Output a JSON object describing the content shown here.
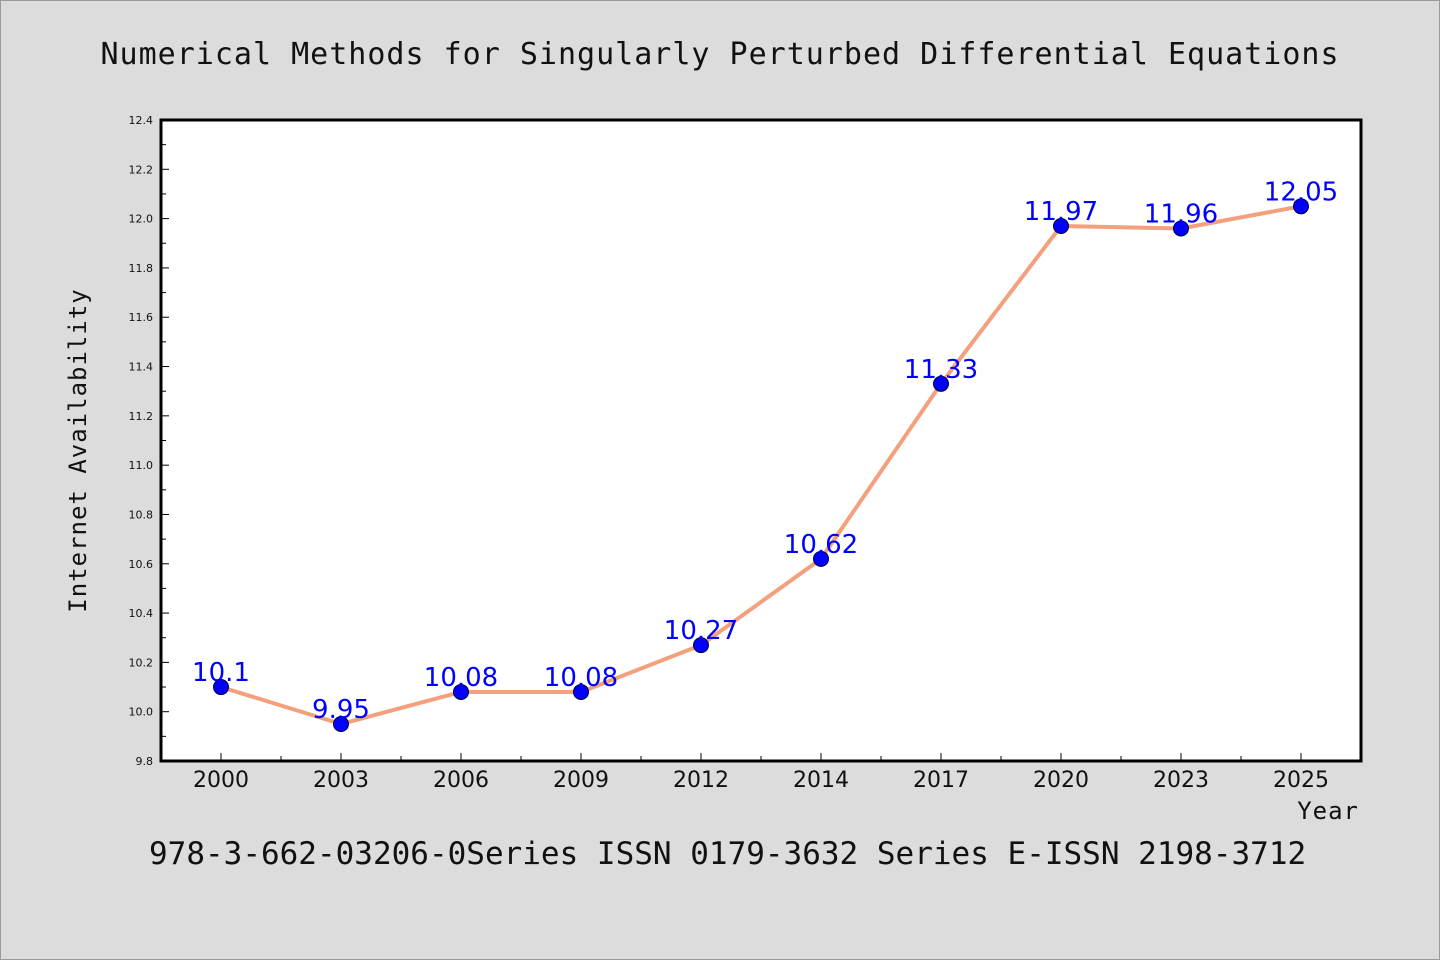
{
  "chart_data": {
    "type": "line",
    "title": "Numerical Methods for Singularly Perturbed Differential Equations",
    "xlabel": "Year",
    "ylabel": "Internet Availability",
    "categories": [
      "2000",
      "2003",
      "2006",
      "2009",
      "2012",
      "2014",
      "2017",
      "2020",
      "2023",
      "2025"
    ],
    "series": [
      {
        "values": [
          10.1,
          9.95,
          10.08,
          10.08,
          10.27,
          10.62,
          11.33,
          11.97,
          11.96,
          12.05
        ],
        "labels": [
          "10.1",
          "9.95",
          "10.08",
          "10.08",
          "10.27",
          "10.62",
          "11.33",
          "11.97",
          "11.96",
          "12.05"
        ],
        "line_color": "#f4a07c",
        "marker_color": "#0000ff"
      }
    ],
    "ylim": [
      9.8,
      12.4
    ],
    "yticks": [
      "9.8",
      "10.0",
      "10.2",
      "10.4",
      "10.6",
      "10.8",
      "11.0",
      "11.2",
      "11.4",
      "11.6",
      "11.8",
      "12.0",
      "12.2",
      "12.4"
    ],
    "grid": false,
    "legend": "none",
    "footer": "978-3-662-03206-0Series ISSN 0179-3632 Series E-ISSN 2198-3712"
  }
}
